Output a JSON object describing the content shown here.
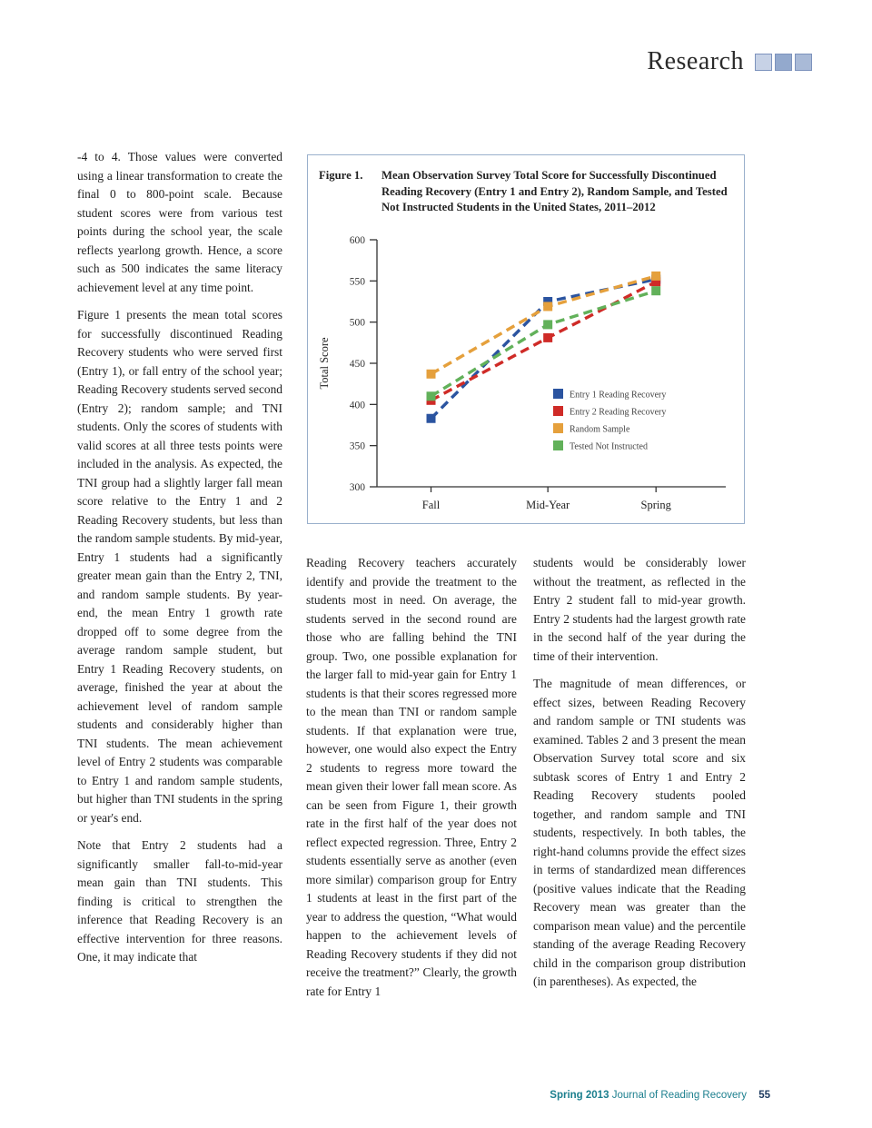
{
  "header": {
    "section_label": "Research"
  },
  "accents": {
    "header_square_blues": [
      "#c7d2e6",
      "#93a9cd",
      "#a9bad7"
    ],
    "figure_border": "#9ab0cc",
    "footer_teal": "#1c7f8e",
    "footer_page_navy": "#1d3a5f"
  },
  "left_column": {
    "paragraphs": [
      "-4 to 4. Those values were converted using a linear transformation to create the final 0 to 800-point scale. Because student scores were from various test points during the school year, the scale reflects yearlong growth. Hence, a score such as 500 indicates the same literacy achievement level at any time point.",
      "Figure 1 presents the mean total scores for successfully discontinued Reading Recovery students who were served first (Entry 1), or fall entry of the school year; Reading Recovery students served second (Entry 2); random sample; and TNI students. Only the scores of students with valid scores at all three tests points were included in the analysis. As expected, the TNI group had a slightly larger fall mean score relative to the Entry 1 and 2 Reading Recovery students, but less than the random sample students. By mid-year, Entry 1 students had a significantly greater mean gain than the Entry 2, TNI, and random sample students. By year-end, the mean Entry 1 growth rate dropped off to some degree from the average random sample student, but Entry 1 Reading Recovery students, on average, finished the year at about the achievement level of random sample students and considerably higher than TNI students. The mean achievement level of Entry 2 students was comparable to Entry 1 and random sample students, but higher than TNI students in the spring or year's end.",
      "Note that Entry 2 students had a significantly smaller fall-to-mid-year mean gain than TNI students. This finding is critical to strengthen the inference that Reading Recovery is an effective intervention for three reasons. One, it may indicate that"
    ]
  },
  "figure": {
    "label": "Figure 1.",
    "caption": "Mean Observation Survey Total Score for Successfully Discontinued Reading Recovery (Entry 1 and Entry 2), Random Sample, and Tested Not Instructed Students in the United States, 2011–2012"
  },
  "chart_data": {
    "type": "line",
    "categories": [
      "Fall",
      "Mid-Year",
      "Spring"
    ],
    "series": [
      {
        "name": "Entry 1 Reading Recovery",
        "color": "#2b54a0",
        "values": [
          383,
          525,
          552
        ]
      },
      {
        "name": "Entry 2 Reading Recovery",
        "color": "#cf2b27",
        "values": [
          405,
          481,
          549
        ]
      },
      {
        "name": "Random Sample",
        "color": "#e5a03c",
        "values": [
          437,
          519,
          556
        ]
      },
      {
        "name": "Tested Not Instructed",
        "color": "#62b15a",
        "values": [
          410,
          497,
          538
        ]
      }
    ],
    "title": "",
    "xlabel": "",
    "ylabel": "Total Score",
    "ylim": [
      300,
      600
    ],
    "yticks": [
      300,
      350,
      400,
      450,
      500,
      550,
      600
    ],
    "line_style": "dashed",
    "marker": "square",
    "grid": false,
    "legend_position": "inside-right-middle"
  },
  "middle_column": {
    "paragraphs": [
      "Reading Recovery teachers accurately identify and provide the treatment to the students most in need. On average, the students served in the second round are those who are falling behind the TNI group. Two, one possible explanation for the larger fall to mid-year gain for Entry 1 students is that their scores regressed more to the mean than TNI or random sample students. If that explanation were true, however, one would also expect the Entry 2 students to regress more toward the mean given their lower fall mean score. As can be seen from Figure 1, their growth rate in the first half of the year does not reflect expected regression. Three, Entry 2 students essentially serve as another (even more similar) comparison group for Entry 1 students at least in the first part of the year to address the question, “What would happen to the achievement levels of Reading Recovery students if they did not receive the treatment?” Clearly, the growth rate for Entry 1"
    ]
  },
  "right_column": {
    "paragraphs": [
      "students would be considerably lower without the treatment, as reflected in the Entry 2 student fall to mid-year growth. Entry 2 students had the largest growth rate in the second half of the year during the time of their intervention.",
      "The magnitude of mean differences, or effect sizes, between Reading Recovery and random sample or TNI students was examined. Tables 2 and 3 present the mean Observation Survey total score and six subtask scores of Entry 1 and Entry 2 Reading Recovery students pooled together, and random sample and TNI students, respectively. In both tables, the right-hand columns provide the effect sizes in terms of standardized mean differences (positive values indicate that the Reading Recovery mean was greater than the comparison mean value) and the percentile standing of the average Reading Recovery child in the comparison group distribution (in parentheses). As expected, the"
    ]
  },
  "footer": {
    "issue": "Spring 2013",
    "journal": "Journal of Reading Recovery",
    "page_number": "55"
  }
}
